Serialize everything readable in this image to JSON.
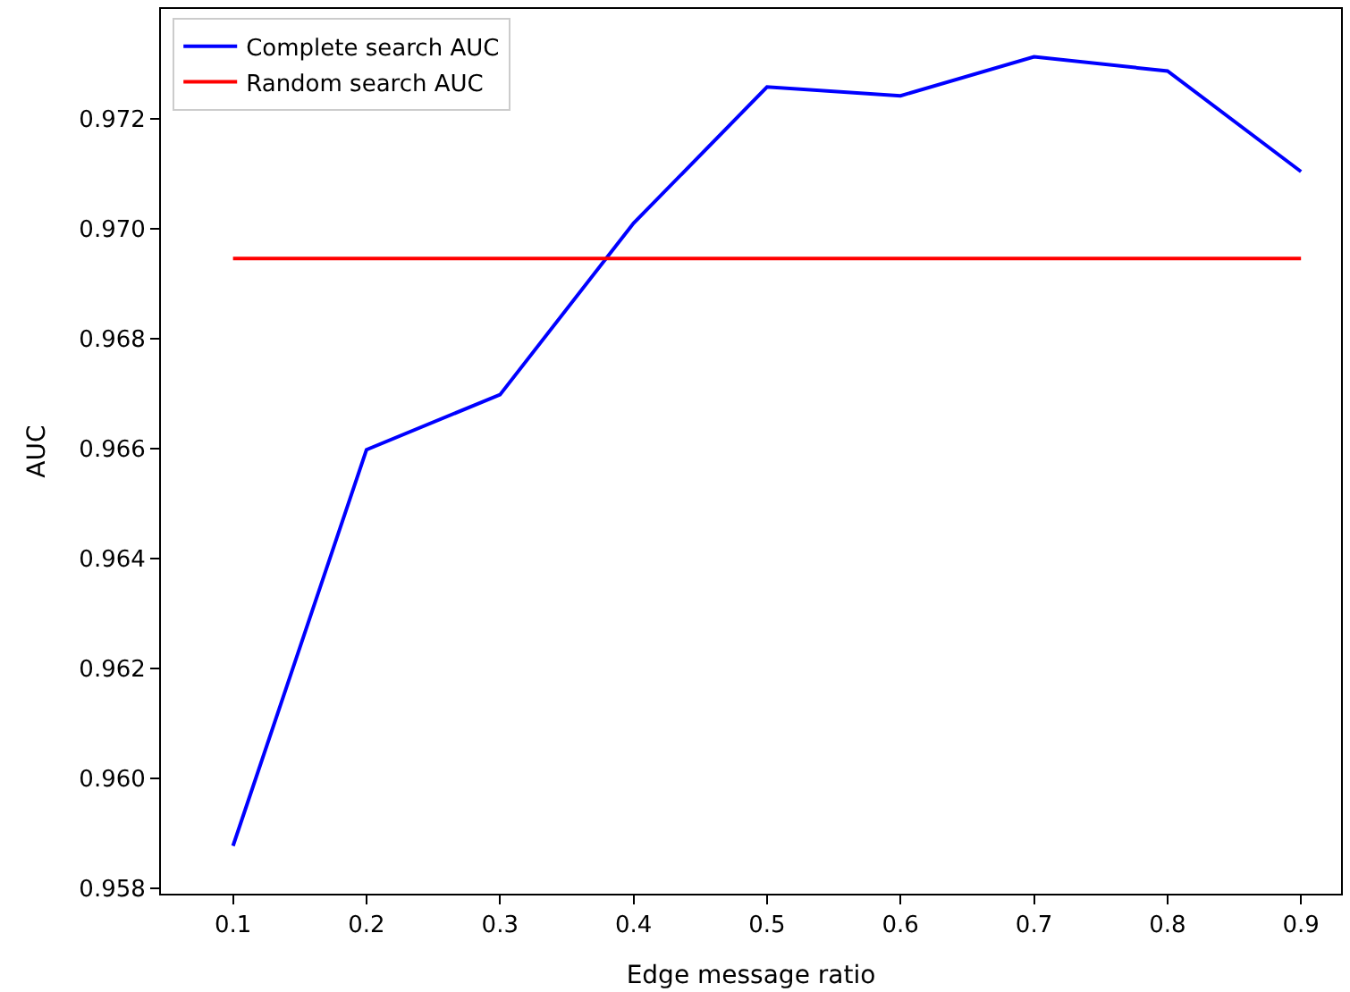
{
  "chart_data": {
    "type": "line",
    "xlabel": "Edge message ratio",
    "ylabel": "AUC",
    "x": [
      0.1,
      0.2,
      0.3,
      0.4,
      0.5,
      0.6,
      0.7,
      0.8,
      0.9
    ],
    "series": [
      {
        "name": "Complete search AUC",
        "color": "#0000ff",
        "values": [
          0.95877,
          0.96598,
          0.96698,
          0.9701,
          0.97258,
          0.97242,
          0.97313,
          0.97287,
          0.97104
        ]
      },
      {
        "name": "Random search AUC",
        "color": "#ff0000",
        "values": [
          0.96946,
          0.96946,
          0.96946,
          0.96946,
          0.96946,
          0.96946,
          0.96946,
          0.96946,
          0.96946
        ]
      }
    ],
    "xlim": [
      0.046,
      0.93
    ],
    "ylim": [
      0.9579,
      0.974
    ],
    "xticks": [
      0.1,
      0.2,
      0.3,
      0.4,
      0.5,
      0.6,
      0.7,
      0.8,
      0.9
    ],
    "yticks": [
      0.958,
      {
        "value": 0.96,
        "label": "0.960"
      },
      0.962,
      0.964,
      0.966,
      0.968,
      {
        "value": 0.97,
        "label": "0.970"
      },
      0.972
    ],
    "legend": "top left"
  }
}
